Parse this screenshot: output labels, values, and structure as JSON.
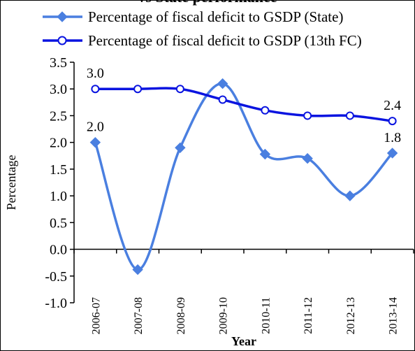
{
  "chart_data": {
    "type": "line",
    "title": "vs State performance",
    "xlabel": "Year",
    "ylabel": "Percentage",
    "categories": [
      "2006-07",
      "2007-08",
      "2008-09",
      "2009-10",
      "2010-11",
      "2011-12",
      "2012-13",
      "2013-14"
    ],
    "series": [
      {
        "name": "Percentage of fiscal deficit to GSDP (State)",
        "values": [
          2.0,
          -0.38,
          1.9,
          3.1,
          1.78,
          1.7,
          1.0,
          1.8
        ],
        "color": "#4a7fe0",
        "marker": "diamond",
        "smooth": true
      },
      {
        "name": "Percentage of fiscal deficit to GSDP (13th FC)",
        "values": [
          3.0,
          3.0,
          3.0,
          2.8,
          2.6,
          2.5,
          2.5,
          2.4
        ],
        "color": "#0a14e0",
        "marker": "open-circle",
        "smooth": true
      }
    ],
    "ylim": [
      -1.0,
      3.5
    ],
    "yticks": [
      "3.5",
      "3.0",
      "2.5",
      "2.0",
      "1.5",
      "1.0",
      "0.5",
      "0.0",
      "-0.5",
      "-1.0"
    ],
    "data_labels": [
      {
        "series": 0,
        "index": 0,
        "text": "2.0"
      },
      {
        "series": 0,
        "index": 7,
        "text": "1.8"
      },
      {
        "series": 1,
        "index": 0,
        "text": "3.0"
      },
      {
        "series": 1,
        "index": 7,
        "text": "2.4"
      }
    ],
    "legend_position": "top"
  }
}
